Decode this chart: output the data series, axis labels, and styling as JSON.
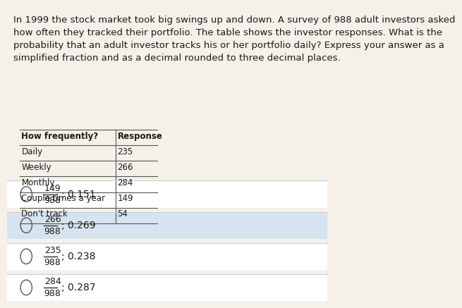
{
  "background_color": "#f5f0e8",
  "paragraph_text": "In 1999 the stock market took big swings up and down. A survey of 988 adult investors asked\nhow often they tracked their portfolio. The table shows the investor responses. What is the\nprobability that an adult investor tracks his or her portfolio daily? Express your answer as a\nsimplified fraction and as a decimal rounded to three decimal places.",
  "table_headers": [
    "How frequently?",
    "Response"
  ],
  "table_rows": [
    [
      "Daily",
      "235"
    ],
    [
      "Weekly",
      "266"
    ],
    [
      "Monthly",
      "284"
    ],
    [
      "Couple times a year",
      "149"
    ],
    [
      "Don't track",
      "54"
    ]
  ],
  "options": [
    {
      "numerator": "149",
      "denominator": "988",
      "decimal": "0.151"
    },
    {
      "numerator": "266",
      "denominator": "988",
      "decimal": "0.269"
    },
    {
      "numerator": "235",
      "denominator": "988",
      "decimal": "0.238"
    },
    {
      "numerator": "284",
      "denominator": "988",
      "decimal": "0.287"
    }
  ],
  "option_bg_colors": [
    "#ffffff",
    "#d6e4f0",
    "#ffffff",
    "#ffffff"
  ],
  "font_size_paragraph": 9.5,
  "font_size_table": 8.5,
  "font_size_options": 10,
  "text_color": "#1a1a1a",
  "table_border_color": "#555555",
  "divider_color": "#cccccc"
}
